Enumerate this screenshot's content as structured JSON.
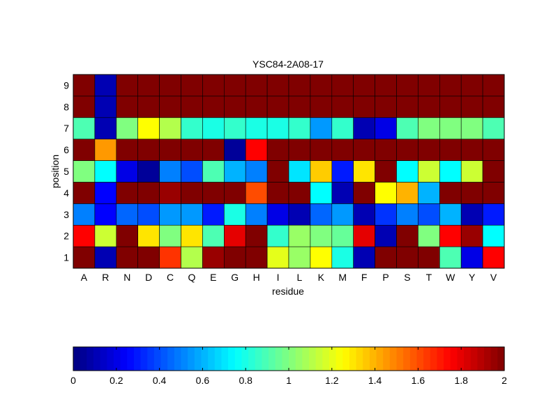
{
  "chart_data": {
    "type": "heatmap",
    "title": "YSC84-2A08-17",
    "xlabel": "residue",
    "ylabel": "position",
    "x_categories": [
      "A",
      "R",
      "N",
      "D",
      "C",
      "Q",
      "E",
      "G",
      "H",
      "I",
      "L",
      "K",
      "M",
      "F",
      "P",
      "S",
      "T",
      "W",
      "Y",
      "V"
    ],
    "y_categories": [
      "1",
      "2",
      "3",
      "4",
      "5",
      "6",
      "7",
      "8",
      "9"
    ],
    "colormap": "jet",
    "clim": [
      0,
      2
    ],
    "colorbar": {
      "placement": "bottom",
      "ticks": [
        0,
        0.2,
        0.4,
        0.6,
        0.8,
        1,
        1.2,
        1.4,
        1.6,
        1.8,
        2
      ],
      "tick_labels": [
        "0",
        "0.2",
        "0.4",
        "0.6",
        "0.8",
        "1",
        "1.2",
        "1.4",
        "1.6",
        "1.8",
        "2"
      ]
    },
    "values": [
      [
        2.0,
        0.1,
        2.0,
        2.0,
        1.65,
        1.1,
        1.95,
        2.0,
        2.0,
        1.2,
        1.05,
        1.25,
        0.8,
        0.1,
        2.0,
        2.0,
        2.0,
        0.9,
        0.2,
        1.75
      ],
      [
        1.75,
        1.15,
        2.0,
        1.3,
        1.0,
        1.3,
        0.9,
        1.8,
        2.0,
        0.85,
        1.05,
        1.0,
        0.95,
        1.8,
        0.1,
        2.0,
        1.0,
        1.75,
        1.95,
        0.75
      ],
      [
        0.5,
        0.25,
        0.45,
        0.4,
        0.55,
        0.55,
        0.3,
        0.8,
        0.5,
        0.2,
        0.1,
        0.45,
        0.55,
        0.1,
        0.35,
        0.5,
        0.4,
        0.6,
        0.1,
        0.3
      ],
      [
        2.0,
        0.25,
        2.0,
        2.0,
        1.95,
        2.0,
        2.0,
        2.0,
        1.6,
        2.0,
        2.0,
        0.75,
        0.1,
        2.0,
        1.25,
        1.4,
        0.6,
        2.0,
        2.0,
        2.0
      ],
      [
        1.0,
        0.75,
        0.2,
        0.05,
        0.5,
        0.4,
        0.9,
        0.6,
        0.5,
        2.0,
        0.7,
        1.35,
        0.3,
        1.3,
        2.0,
        0.75,
        1.15,
        0.75,
        1.15,
        2.0
      ],
      [
        2.0,
        1.45,
        2.0,
        2.0,
        2.0,
        2.0,
        2.0,
        0.05,
        1.75,
        2.0,
        2.0,
        2.0,
        2.0,
        2.0,
        2.0,
        2.0,
        2.0,
        2.0,
        2.0,
        2.0
      ],
      [
        0.9,
        0.1,
        1.0,
        1.25,
        1.1,
        0.85,
        0.8,
        0.85,
        0.8,
        0.8,
        0.85,
        0.55,
        0.85,
        0.1,
        0.2,
        0.9,
        1.0,
        1.0,
        1.0,
        0.9
      ],
      [
        2.0,
        0.1,
        2.0,
        2.0,
        2.0,
        2.0,
        2.0,
        2.0,
        2.0,
        2.0,
        2.0,
        2.0,
        2.0,
        2.0,
        2.0,
        2.0,
        2.0,
        2.0,
        2.0,
        2.0
      ],
      [
        2.0,
        0.1,
        2.0,
        2.0,
        2.0,
        2.0,
        2.0,
        2.0,
        2.0,
        2.0,
        2.0,
        2.0,
        2.0,
        2.0,
        2.0,
        2.0,
        2.0,
        2.0,
        2.0,
        2.0
      ]
    ],
    "grid": true
  }
}
